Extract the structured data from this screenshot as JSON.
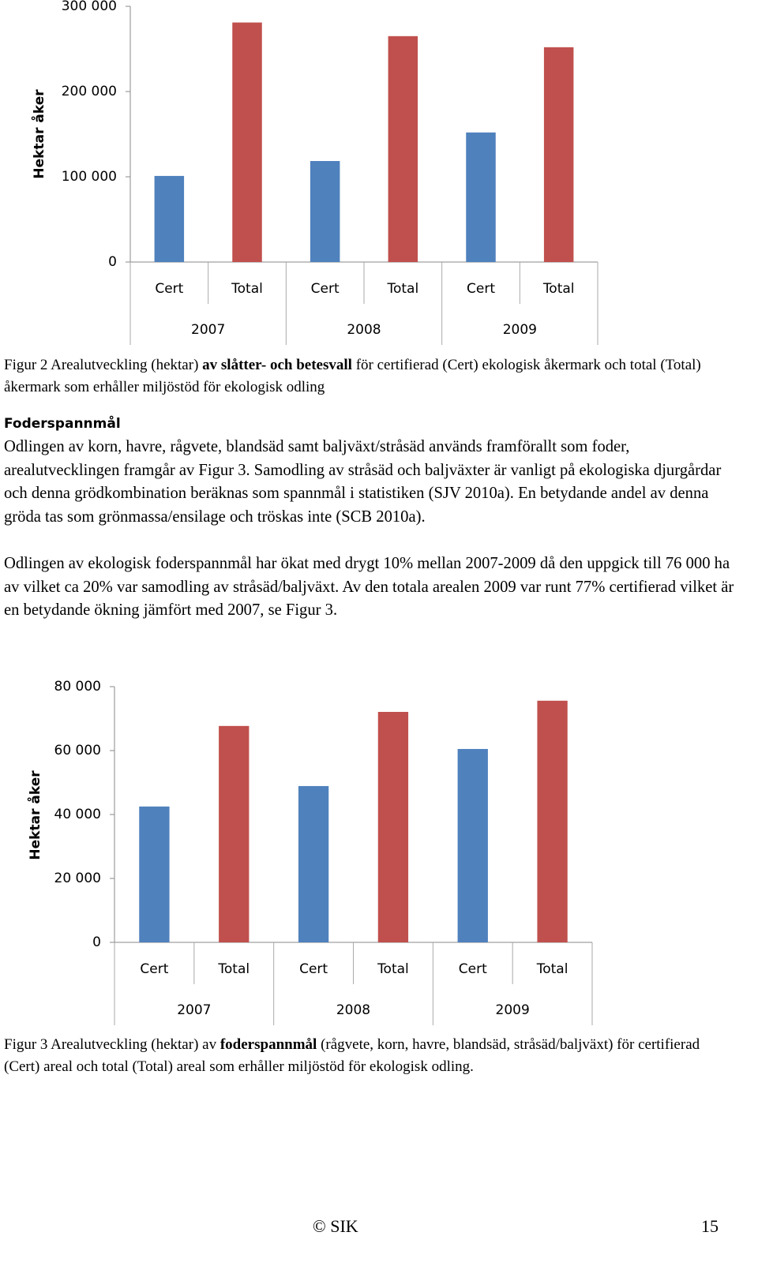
{
  "chart_data": [
    {
      "type": "bar",
      "y_label": "Hektar åker",
      "categories": [
        "Cert",
        "Total",
        "Cert",
        "Total",
        "Cert",
        "Total"
      ],
      "groups": [
        "2007",
        "2008",
        "2009"
      ],
      "values": [
        101000,
        281000,
        118500,
        265000,
        152000,
        252000
      ],
      "colors": [
        "#4f81bd",
        "#c0504d",
        "#4f81bd",
        "#c0504d",
        "#4f81bd",
        "#c0504d"
      ],
      "ylim": [
        0,
        300000
      ],
      "yticks": [
        {
          "value": 0,
          "label": "0"
        },
        {
          "value": 100000,
          "label": "100 000"
        },
        {
          "value": 200000,
          "label": "200 000"
        },
        {
          "value": 300000,
          "label": "300 000"
        }
      ],
      "grid": false
    },
    {
      "type": "bar",
      "y_label": "Hektar åker",
      "categories": [
        "Cert",
        "Total",
        "Cert",
        "Total",
        "Cert",
        "Total"
      ],
      "groups": [
        "2007",
        "2008",
        "2009"
      ],
      "values": [
        42500,
        67700,
        48900,
        72100,
        60500,
        75600
      ],
      "colors": [
        "#4f81bd",
        "#c0504d",
        "#4f81bd",
        "#c0504d",
        "#4f81bd",
        "#c0504d"
      ],
      "ylim": [
        0,
        80000
      ],
      "yticks": [
        {
          "value": 0,
          "label": "0"
        },
        {
          "value": 20000,
          "label": "20 000"
        },
        {
          "value": 40000,
          "label": "40 000"
        },
        {
          "value": 60000,
          "label": "60 000"
        },
        {
          "value": 80000,
          "label": "80 000"
        }
      ],
      "grid": false
    }
  ],
  "caption1": [
    "Figur 2 Arealutveckling (hektar) ",
    "av slåtter- och betesvall",
    " för certifierad (Cert) ekologisk åkermark och total (Total) åkermark som erhåller miljöstöd för ekologisk odling"
  ],
  "section": {
    "heading": "Foderspannmål",
    "paragraphs": [
      "Odlingen av korn, havre, rågvete, blandsäd samt baljväxt/stråsäd används framförallt som foder, arealutvecklingen framgår av Figur 3. Samodling av stråsäd och baljväxter är vanligt på ekologiska djurgårdar och denna grödkombination beräknas som spannmål i statistiken (SJV 2010a). En betydande andel av denna gröda tas som grönmassa/ensilage och tröskas inte (SCB 2010a).",
      "Odlingen av ekologisk foderspannmål har ökat med drygt 10% mellan 2007-2009 då den uppgick till 76 000 ha av vilket ca 20% var samodling av stråsäd/baljväxt. Av den totala arealen 2009 var runt 77% certifierad vilket är en betydande ökning jämfört med 2007, se Figur 3."
    ]
  },
  "caption2": [
    "Figur 3 Arealutveckling (hektar) av ",
    "foderspannmål",
    " (rågvete, korn, havre, blandsäd, stråsäd/baljväxt) för certifierad (Cert) areal och total (Total) areal som erhåller miljöstöd för ekologisk odling."
  ],
  "footer": {
    "copyright": "© SIK",
    "page": "15"
  }
}
